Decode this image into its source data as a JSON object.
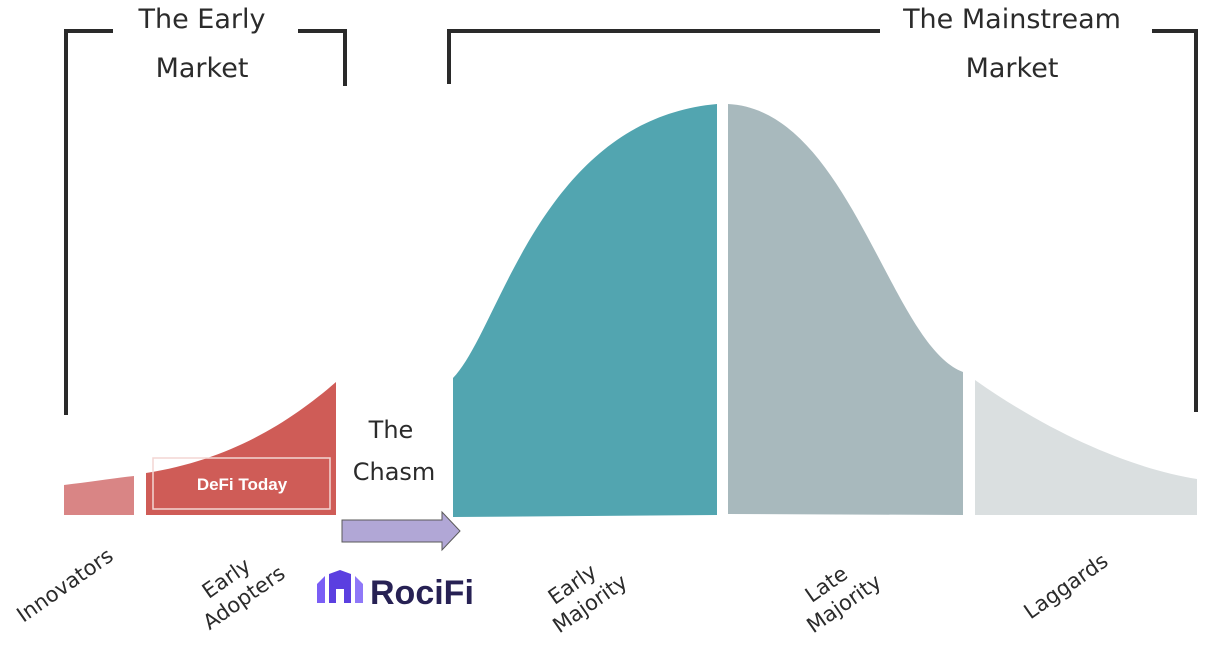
{
  "early_market": {
    "line1": "The Early",
    "line2": "Market"
  },
  "mainstream_market": {
    "line1": "The Mainstream",
    "line2": "Market"
  },
  "chasm": {
    "line1": "The",
    "line2": "Chasm"
  },
  "badge": {
    "label": "DeFi Today"
  },
  "brand": {
    "name": "RociFi",
    "icon": "rocifi-logo-icon"
  },
  "segments": {
    "innovators": {
      "line1": "Innovators"
    },
    "early_adopters": {
      "line1": "Early",
      "line2": "Adopters"
    },
    "early_majority": {
      "line1": "Early",
      "line2": "Majority"
    },
    "late_majority": {
      "line1": "Late",
      "line2": "Majority"
    },
    "laggards": {
      "line1": "Laggards"
    }
  },
  "colors": {
    "innovators": "#d98585",
    "early_adopters": "#cf5c57",
    "early_majority": "#52a5b0",
    "late_majority": "#a8b9bd",
    "laggards": "#dadfe0",
    "arrow": "#b1a7d6",
    "brand": "#6a4cf0",
    "bracket": "#2a2a2a"
  }
}
